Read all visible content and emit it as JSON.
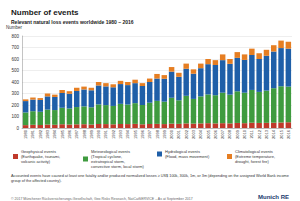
{
  "chart_data": {
    "type": "bar",
    "title": "Number of events",
    "subtitle": "Relevant natural loss events worldwide 1980 – 2016",
    "y_label": "Number",
    "annotations": [
      "Accounted events have caused at least one fatality and/or produced normalized losses ≥ US$ 100k, 300k, 1m, or 3m (depending on the assigned World Bank income group of the affected country).",
      "© 2017 Münchener Rückversicherungs-Gesellschaft, Geo Risks Research, NatCatSERVICE – As at September 2017",
      "Munich RE"
    ],
    "stacked": true,
    "grid": true,
    "legend": "bottom",
    "categories": [
      "1980",
      "1981",
      "1982",
      "1983",
      "1984",
      "1985",
      "1986",
      "1987",
      "1988",
      "1989",
      "1990",
      "1991",
      "1992",
      "1993",
      "1994",
      "1995",
      "1996",
      "1997",
      "1998",
      "1999",
      "2000",
      "2001",
      "2002",
      "2003",
      "2004",
      "2005",
      "2006",
      "2007",
      "2008",
      "2009",
      "2010",
      "2011",
      "2012",
      "2013",
      "2014",
      "2015",
      "2016"
    ],
    "series": [
      {
        "name": "Geophysical events\n(Earthquake, tsunami,\nvolcanic activity)",
        "color": "#c0392b",
        "values": [
          25,
          28,
          26,
          30,
          28,
          32,
          30,
          32,
          33,
          30,
          35,
          34,
          32,
          35,
          34,
          36,
          32,
          35,
          36,
          34,
          38,
          36,
          40,
          38,
          40,
          42,
          40,
          42,
          40,
          44,
          42,
          46,
          44,
          45,
          46,
          48,
          50
        ]
      },
      {
        "name": "Meteorological events\n(Tropical cyclone,\nextratropical storm,\nconvective storm, local storm)",
        "color": "#3f9b3f",
        "values": [
          110,
          118,
          115,
          130,
          128,
          145,
          140,
          150,
          155,
          150,
          170,
          165,
          160,
          175,
          170,
          180,
          168,
          185,
          200,
          195,
          225,
          205,
          240,
          215,
          235,
          250,
          245,
          265,
          250,
          275,
          265,
          285,
          270,
          280,
          300,
          315,
          310
        ]
      },
      {
        "name": "Hydrological events\n(Flood, mass movement)",
        "color": "#1f5fa8",
        "values": [
          99,
          101,
          103,
          115,
          114,
          128,
          128,
          140,
          147,
          148,
          165,
          163,
          162,
          172,
          169,
          174,
          165,
          180,
          194,
          199,
          227,
          204,
          235,
          219,
          245,
          263,
          263,
          283,
          268,
          291,
          285,
          304,
          286,
          303,
          319,
          332,
          330
        ]
      },
      {
        "name": "Climatological events\n(Extreme temperature,\ndrought, forest fire)",
        "color": "#e67e22",
        "values": [
          15,
          18,
          16,
          25,
          20,
          25,
          22,
          28,
          25,
          22,
          30,
          28,
          26,
          28,
          27,
          30,
          25,
          30,
          40,
          32,
          40,
          35,
          45,
          38,
          40,
          45,
          42,
          50,
          42,
          50,
          48,
          55,
          50,
          52,
          55,
          65,
          60
        ]
      }
    ],
    "ylim": [
      0,
      800
    ],
    "yticks": [
      0,
      100,
      200,
      300,
      400,
      500,
      600,
      700,
      800
    ]
  }
}
